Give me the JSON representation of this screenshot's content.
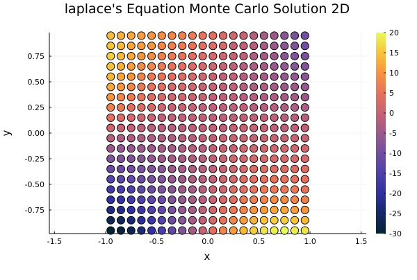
{
  "chart_data": {
    "type": "scatter",
    "title": "laplace's Equation Monte Carlo Solution 2D",
    "xlabel": "x",
    "ylabel": "y",
    "xlim": [
      -1.55,
      1.55
    ],
    "ylim": [
      -0.98,
      0.98
    ],
    "x_ticks": [
      -1.5,
      -1.0,
      -0.5,
      0.0,
      0.5,
      1.0,
      1.5
    ],
    "x_tick_labels": [
      "-1.5",
      "-1.0",
      "-0.5",
      "0.0",
      "0.5",
      "1.0",
      "1.5"
    ],
    "y_ticks": [
      -0.75,
      -0.5,
      -0.25,
      0.0,
      0.25,
      0.5,
      0.75
    ],
    "y_tick_labels": [
      "-0.75",
      "-0.50",
      "-0.25",
      "0.00",
      "0.25",
      "0.50",
      "0.75"
    ],
    "grid": true,
    "legend": "none",
    "colorbar": {
      "colormap": "thermal",
      "min": -30,
      "max": 20,
      "ticks": [
        -30,
        -25,
        -20,
        -15,
        -10,
        -5,
        0,
        5,
        10,
        15,
        20
      ],
      "tick_labels": [
        "-30",
        "-25",
        "-20",
        "-15",
        "-10",
        "-5",
        "0",
        "5",
        "10",
        "15",
        "20"
      ]
    },
    "grid_points": {
      "x_start": -0.95,
      "x_end": 0.95,
      "count_x": 20,
      "y_start": -0.95,
      "y_end": 0.95,
      "count_y": 20
    },
    "z_by_row": [
      [
        -30,
        -29,
        -27,
        -24,
        -20,
        -16,
        -12,
        -8,
        -4,
        0,
        4,
        8,
        11,
        14,
        16,
        18,
        19,
        20,
        19,
        18
      ],
      [
        -27,
        -26,
        -24,
        -21,
        -18,
        -14,
        -11,
        -7,
        -4,
        -1,
        2,
        5,
        8,
        11,
        13,
        15,
        16,
        16,
        15,
        14
      ],
      [
        -23,
        -22,
        -20,
        -18,
        -15,
        -12,
        -9,
        -6,
        -4,
        -1,
        1,
        4,
        6,
        8,
        10,
        11,
        12,
        12,
        11,
        10
      ],
      [
        -20,
        -19,
        -17,
        -15,
        -13,
        -11,
        -8,
        -6,
        -4,
        -2,
        0,
        2,
        4,
        6,
        7,
        8,
        9,
        9,
        8,
        7
      ],
      [
        -17,
        -16,
        -15,
        -13,
        -11,
        -9,
        -7,
        -5,
        -4,
        -2,
        0,
        1,
        3,
        4,
        5,
        6,
        6,
        6,
        6,
        5
      ],
      [
        -14,
        -13,
        -12,
        -11,
        -9,
        -8,
        -6,
        -5,
        -3,
        -2,
        -1,
        1,
        2,
        3,
        4,
        4,
        5,
        5,
        4,
        4
      ],
      [
        -11,
        -11,
        -10,
        -9,
        -8,
        -7,
        -5,
        -4,
        -3,
        -2,
        -1,
        0,
        1,
        2,
        3,
        3,
        3,
        3,
        3,
        3
      ],
      [
        -8,
        -8,
        -8,
        -7,
        -6,
        -5,
        -4,
        -4,
        -3,
        -2,
        -1,
        0,
        1,
        1,
        2,
        2,
        2,
        2,
        2,
        2
      ],
      [
        -5,
        -6,
        -6,
        -5,
        -5,
        -4,
        -4,
        -3,
        -2,
        -2,
        -1,
        0,
        0,
        1,
        1,
        1,
        1,
        1,
        1,
        1
      ],
      [
        -2,
        -3,
        -3,
        -3,
        -3,
        -3,
        -3,
        -2,
        -2,
        -1,
        -1,
        0,
        0,
        0,
        0,
        0,
        0,
        0,
        0,
        0
      ],
      [
        1,
        0,
        -1,
        -1,
        -2,
        -2,
        -2,
        -2,
        -1,
        -1,
        -1,
        -1,
        0,
        0,
        0,
        0,
        -1,
        -1,
        -1,
        -1
      ],
      [
        4,
        3,
        2,
        1,
        0,
        -1,
        -1,
        -1,
        -1,
        -1,
        -1,
        -1,
        -1,
        -1,
        -1,
        -1,
        -1,
        -2,
        -2,
        -2
      ],
      [
        7,
        6,
        4,
        3,
        2,
        1,
        0,
        0,
        0,
        -1,
        -1,
        -1,
        -1,
        -1,
        -2,
        -2,
        -2,
        -3,
        -3,
        -3
      ],
      [
        10,
        8,
        6,
        5,
        3,
        2,
        1,
        1,
        0,
        0,
        -1,
        -1,
        -1,
        -2,
        -2,
        -3,
        -3,
        -4,
        -4,
        -5
      ],
      [
        12,
        10,
        8,
        6,
        5,
        4,
        2,
        2,
        1,
        0,
        0,
        -1,
        -1,
        -2,
        -3,
        -3,
        -4,
        -5,
        -5,
        -6
      ],
      [
        14,
        12,
        10,
        8,
        6,
        5,
        4,
        3,
        2,
        1,
        0,
        -1,
        -1,
        -2,
        -3,
        -4,
        -5,
        -6,
        -6,
        -7
      ],
      [
        15,
        13,
        11,
        9,
        8,
        6,
        5,
        4,
        3,
        2,
        1,
        0,
        -1,
        -2,
        -3,
        -4,
        -5,
        -6,
        -7,
        -8
      ],
      [
        16,
        14,
        12,
        10,
        9,
        7,
        6,
        5,
        4,
        3,
        2,
        1,
        0,
        -1,
        -3,
        -4,
        -5,
        -7,
        -8,
        -9
      ],
      [
        15,
        14,
        12,
        11,
        10,
        8,
        7,
        6,
        5,
        4,
        3,
        2,
        0,
        -1,
        -2,
        -4,
        -5,
        -7,
        -8,
        -10
      ],
      [
        14,
        13,
        12,
        11,
        10,
        9,
        8,
        7,
        6,
        5,
        4,
        3,
        1,
        0,
        -2,
        -4,
        -5,
        -7,
        -9,
        -10
      ]
    ]
  }
}
